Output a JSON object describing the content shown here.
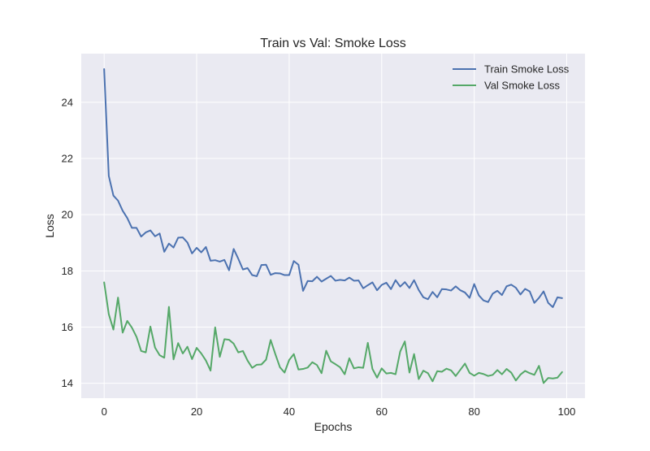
{
  "chart_data": {
    "type": "line",
    "title": "Train vs Val: Smoke Loss",
    "xlabel": "Epochs",
    "ylabel": "Loss",
    "xlim": [
      -4.95,
      103.95
    ],
    "ylim": [
      13.47,
      25.73
    ],
    "xticks": [
      0,
      20,
      40,
      60,
      80,
      100
    ],
    "yticks": [
      14,
      16,
      18,
      20,
      22,
      24
    ],
    "grid": true,
    "legend_position": "top-right",
    "background_color": "#eaeaf2",
    "x": [
      0,
      1,
      2,
      3,
      4,
      5,
      6,
      7,
      8,
      9,
      10,
      11,
      12,
      13,
      14,
      15,
      16,
      17,
      18,
      19,
      20,
      21,
      22,
      23,
      24,
      25,
      26,
      27,
      28,
      29,
      30,
      31,
      32,
      33,
      34,
      35,
      36,
      37,
      38,
      39,
      40,
      41,
      42,
      43,
      44,
      45,
      46,
      47,
      48,
      49,
      50,
      51,
      52,
      53,
      54,
      55,
      56,
      57,
      58,
      59,
      60,
      61,
      62,
      63,
      64,
      65,
      66,
      67,
      68,
      69,
      70,
      71,
      72,
      73,
      74,
      75,
      76,
      77,
      78,
      79,
      80,
      81,
      82,
      83,
      84,
      85,
      86,
      87,
      88,
      89,
      90,
      91,
      92,
      93,
      94,
      95,
      96,
      97,
      98,
      99
    ],
    "series": [
      {
        "name": "Train Smoke Loss",
        "color": "#4c72b0",
        "values": [
          25.18,
          21.38,
          20.68,
          20.5,
          20.14,
          19.88,
          19.53,
          19.53,
          19.22,
          19.37,
          19.44,
          19.23,
          19.33,
          18.68,
          18.97,
          18.83,
          19.18,
          19.19,
          19.01,
          18.62,
          18.82,
          18.66,
          18.85,
          18.36,
          18.38,
          18.33,
          18.39,
          18.02,
          18.78,
          18.43,
          18.05,
          18.1,
          17.85,
          17.81,
          18.21,
          18.22,
          17.86,
          17.92,
          17.91,
          17.85,
          17.85,
          18.35,
          18.22,
          17.29,
          17.64,
          17.63,
          17.79,
          17.62,
          17.72,
          17.82,
          17.65,
          17.68,
          17.66,
          17.76,
          17.65,
          17.66,
          17.38,
          17.49,
          17.59,
          17.31,
          17.5,
          17.58,
          17.35,
          17.67,
          17.44,
          17.6,
          17.39,
          17.67,
          17.32,
          17.06,
          16.99,
          17.25,
          17.06,
          17.35,
          17.34,
          17.3,
          17.45,
          17.31,
          17.23,
          17.04,
          17.53,
          17.13,
          16.95,
          16.89,
          17.19,
          17.29,
          17.14,
          17.45,
          17.51,
          17.4,
          17.16,
          17.36,
          17.27,
          16.86,
          17.04,
          17.27,
          16.86,
          16.71,
          17.06,
          17.03
        ]
      },
      {
        "name": "Val Smoke Loss",
        "color": "#55a868",
        "values": [
          17.59,
          16.46,
          15.91,
          17.05,
          15.8,
          16.22,
          15.98,
          15.65,
          15.15,
          15.1,
          16.02,
          15.27,
          15.0,
          14.91,
          16.72,
          14.85,
          15.43,
          15.06,
          15.3,
          14.86,
          15.26,
          15.06,
          14.81,
          14.45,
          15.99,
          14.94,
          15.57,
          15.55,
          15.41,
          15.1,
          15.15,
          14.81,
          14.55,
          14.66,
          14.67,
          14.84,
          15.54,
          15.04,
          14.57,
          14.38,
          14.83,
          15.04,
          14.49,
          14.51,
          14.56,
          14.75,
          14.65,
          14.36,
          15.16,
          14.78,
          14.68,
          14.57,
          14.32,
          14.89,
          14.53,
          14.57,
          14.55,
          15.44,
          14.51,
          14.2,
          14.53,
          14.35,
          14.37,
          14.32,
          15.13,
          15.49,
          14.38,
          15.04,
          14.15,
          14.45,
          14.36,
          14.07,
          14.43,
          14.41,
          14.52,
          14.46,
          14.26,
          14.48,
          14.7,
          14.37,
          14.27,
          14.37,
          14.33,
          14.26,
          14.3,
          14.47,
          14.32,
          14.51,
          14.38,
          14.1,
          14.31,
          14.44,
          14.36,
          14.3,
          14.62,
          14.01,
          14.19,
          14.17,
          14.2,
          14.4
        ]
      }
    ]
  }
}
